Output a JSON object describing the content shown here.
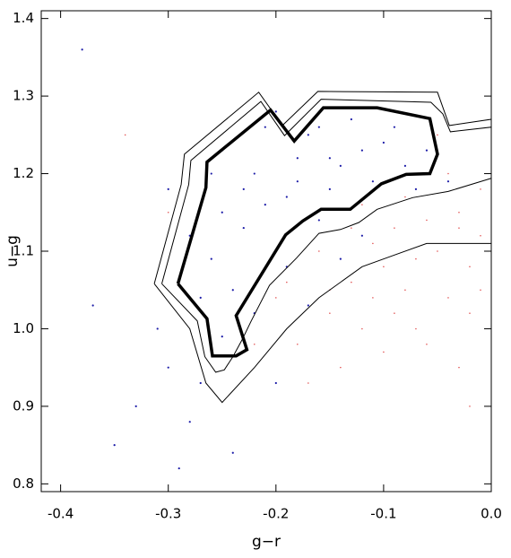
{
  "chart_data": {
    "type": "scatter",
    "x_label": "g−r",
    "y_label": "u−g",
    "xlim": [
      -0.418,
      0.0
    ],
    "ylim": [
      0.79,
      1.41
    ],
    "xticks": [
      -0.4,
      -0.3,
      -0.2,
      -0.1,
      {
        "value": 0,
        "label": "0.0"
      }
    ],
    "yticks": [
      0.8,
      0.9,
      {
        "value": 1,
        "label": "1.0"
      },
      1.1,
      1.2,
      1.3,
      1.4
    ],
    "series": [
      {
        "color": "#1c1ca8",
        "size": 2.2,
        "x": [
          -0.25,
          -0.22,
          -0.18,
          -0.15,
          -0.12,
          -0.2,
          -0.24,
          -0.17,
          -0.1,
          -0.08,
          -0.21,
          -0.26,
          -0.23,
          -0.19,
          -0.14,
          -0.16,
          -0.13,
          -0.09,
          -0.27,
          -0.28,
          -0.22,
          -0.25,
          -0.3,
          -0.33,
          -0.35,
          -0.28,
          -0.24,
          -0.31,
          -0.37,
          -0.2,
          -0.06,
          -0.11,
          -0.18,
          -0.23,
          -0.15,
          -0.26,
          -0.19,
          -0.12,
          -0.04,
          -0.38,
          -0.3,
          -0.29,
          -0.2,
          -0.25,
          -0.17,
          -0.14,
          -0.21,
          -0.16,
          -0.07,
          -0.27
        ],
        "y": [
          1.15,
          1.2,
          1.22,
          1.18,
          1.23,
          1.1,
          1.05,
          1.25,
          1.24,
          1.21,
          1.26,
          1.09,
          1.13,
          1.17,
          1.21,
          1.14,
          1.27,
          1.26,
          1.04,
          1.12,
          1.02,
          0.99,
          0.95,
          0.9,
          0.85,
          0.88,
          0.84,
          1.0,
          1.03,
          1.28,
          1.23,
          1.19,
          1.19,
          1.18,
          1.22,
          1.2,
          1.08,
          1.12,
          1.19,
          1.36,
          1.18,
          0.82,
          0.93,
          1.23,
          1.03,
          1.09,
          1.16,
          1.26,
          1.18,
          0.93
        ]
      },
      {
        "color": "#e04848",
        "size": 1.5,
        "x": [
          -0.05,
          -0.03,
          -0.08,
          -0.1,
          -0.02,
          -0.12,
          -0.15,
          -0.06,
          -0.01,
          -0.04,
          -0.09,
          -0.13,
          -0.18,
          -0.07,
          -0.02,
          -0.11,
          -0.14,
          -0.03,
          -0.16,
          -0.2,
          -0.01,
          -0.06,
          -0.1,
          -0.08,
          -0.04,
          -0.12,
          -0.17,
          -0.02,
          -0.22,
          -0.05,
          -0.09,
          -0.13,
          -0.3,
          -0.34,
          -0.01,
          -0.07,
          -0.15,
          -0.11,
          -0.03,
          -0.19
        ],
        "y": [
          1.1,
          1.15,
          1.05,
          1.08,
          1.02,
          1.0,
          1.02,
          0.98,
          1.12,
          1.2,
          1.13,
          1.06,
          0.98,
          1.09,
          1.08,
          1.11,
          0.95,
          0.95,
          1.1,
          1.04,
          1.18,
          1.14,
          0.97,
          1.17,
          1.04,
          1.16,
          0.93,
          0.9,
          0.98,
          1.25,
          1.02,
          1.13,
          1.15,
          1.25,
          1.05,
          1.0,
          1.05,
          1.04,
          1.13,
          1.06
        ]
      }
    ],
    "contours": [
      {
        "width": 3.5,
        "x": [
          -0.291,
          -0.265,
          -0.264,
          -0.205,
          -0.183,
          -0.156,
          -0.106,
          -0.057,
          -0.05,
          -0.057,
          -0.079,
          -0.102,
          -0.131,
          -0.158,
          -0.175,
          -0.191,
          -0.237,
          -0.227,
          -0.237,
          -0.259,
          -0.264,
          -0.291
        ],
        "y": [
          1.058,
          1.182,
          1.215,
          1.282,
          1.242,
          1.285,
          1.285,
          1.271,
          1.225,
          1.2,
          1.199,
          1.187,
          1.154,
          1.154,
          1.139,
          1.121,
          1.017,
          0.973,
          0.965,
          0.965,
          1.013,
          1.058
        ]
      },
      {
        "width": 1,
        "x": [
          -0.306,
          -0.281,
          -0.279,
          -0.214,
          -0.192,
          -0.158,
          -0.056,
          -0.045,
          -0.038,
          0.0,
          0.0,
          -0.04,
          -0.073,
          -0.106,
          -0.123,
          -0.14,
          -0.16,
          -0.181,
          -0.206,
          -0.223,
          -0.231,
          -0.24,
          -0.248,
          -0.256,
          -0.266,
          -0.273,
          -0.306
        ],
        "y": [
          1.058,
          1.186,
          1.217,
          1.293,
          1.249,
          1.296,
          1.292,
          1.277,
          1.254,
          1.26,
          1.194,
          1.177,
          1.169,
          1.154,
          1.137,
          1.128,
          1.123,
          1.091,
          1.056,
          1.01,
          0.987,
          0.964,
          0.947,
          0.944,
          0.964,
          1.01,
          1.058
        ]
      },
      {
        "width": 1,
        "x": [
          -0.313,
          -0.288,
          -0.285,
          -0.216,
          -0.194,
          -0.161,
          -0.05,
          -0.039,
          0.0,
          0.0,
          -0.06,
          -0.09,
          -0.12,
          -0.16,
          -0.19,
          -0.22,
          -0.25,
          -0.265,
          -0.28,
          -0.313
        ],
        "y": [
          1.058,
          1.186,
          1.225,
          1.305,
          1.262,
          1.306,
          1.305,
          1.262,
          1.27,
          1.11,
          1.11,
          1.095,
          1.08,
          1.04,
          1.0,
          0.95,
          0.905,
          0.93,
          1.0,
          1.058
        ]
      }
    ]
  }
}
